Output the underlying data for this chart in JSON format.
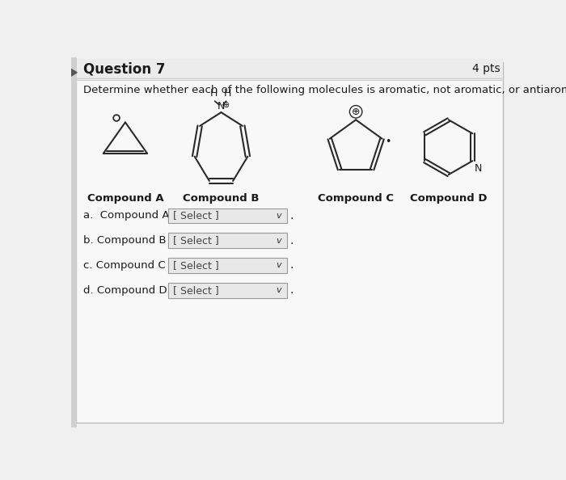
{
  "title": "Question 7",
  "pts": "4 pts",
  "instruction": "Determine whether each of the following molecules is aromatic, not aromatic, or antiaromatic.",
  "compound_labels": [
    "Compound A",
    "Compound B",
    "Compound C",
    "Compound D"
  ],
  "select_text": "[ Select ]",
  "bg_color": "#f0f0f0",
  "content_bg": "#f5f5f5",
  "line_color": "#2a2a2a",
  "text_color": "#1a1a1a",
  "box_bg": "#e0e0e0",
  "header_bg": "#e8e8e8"
}
